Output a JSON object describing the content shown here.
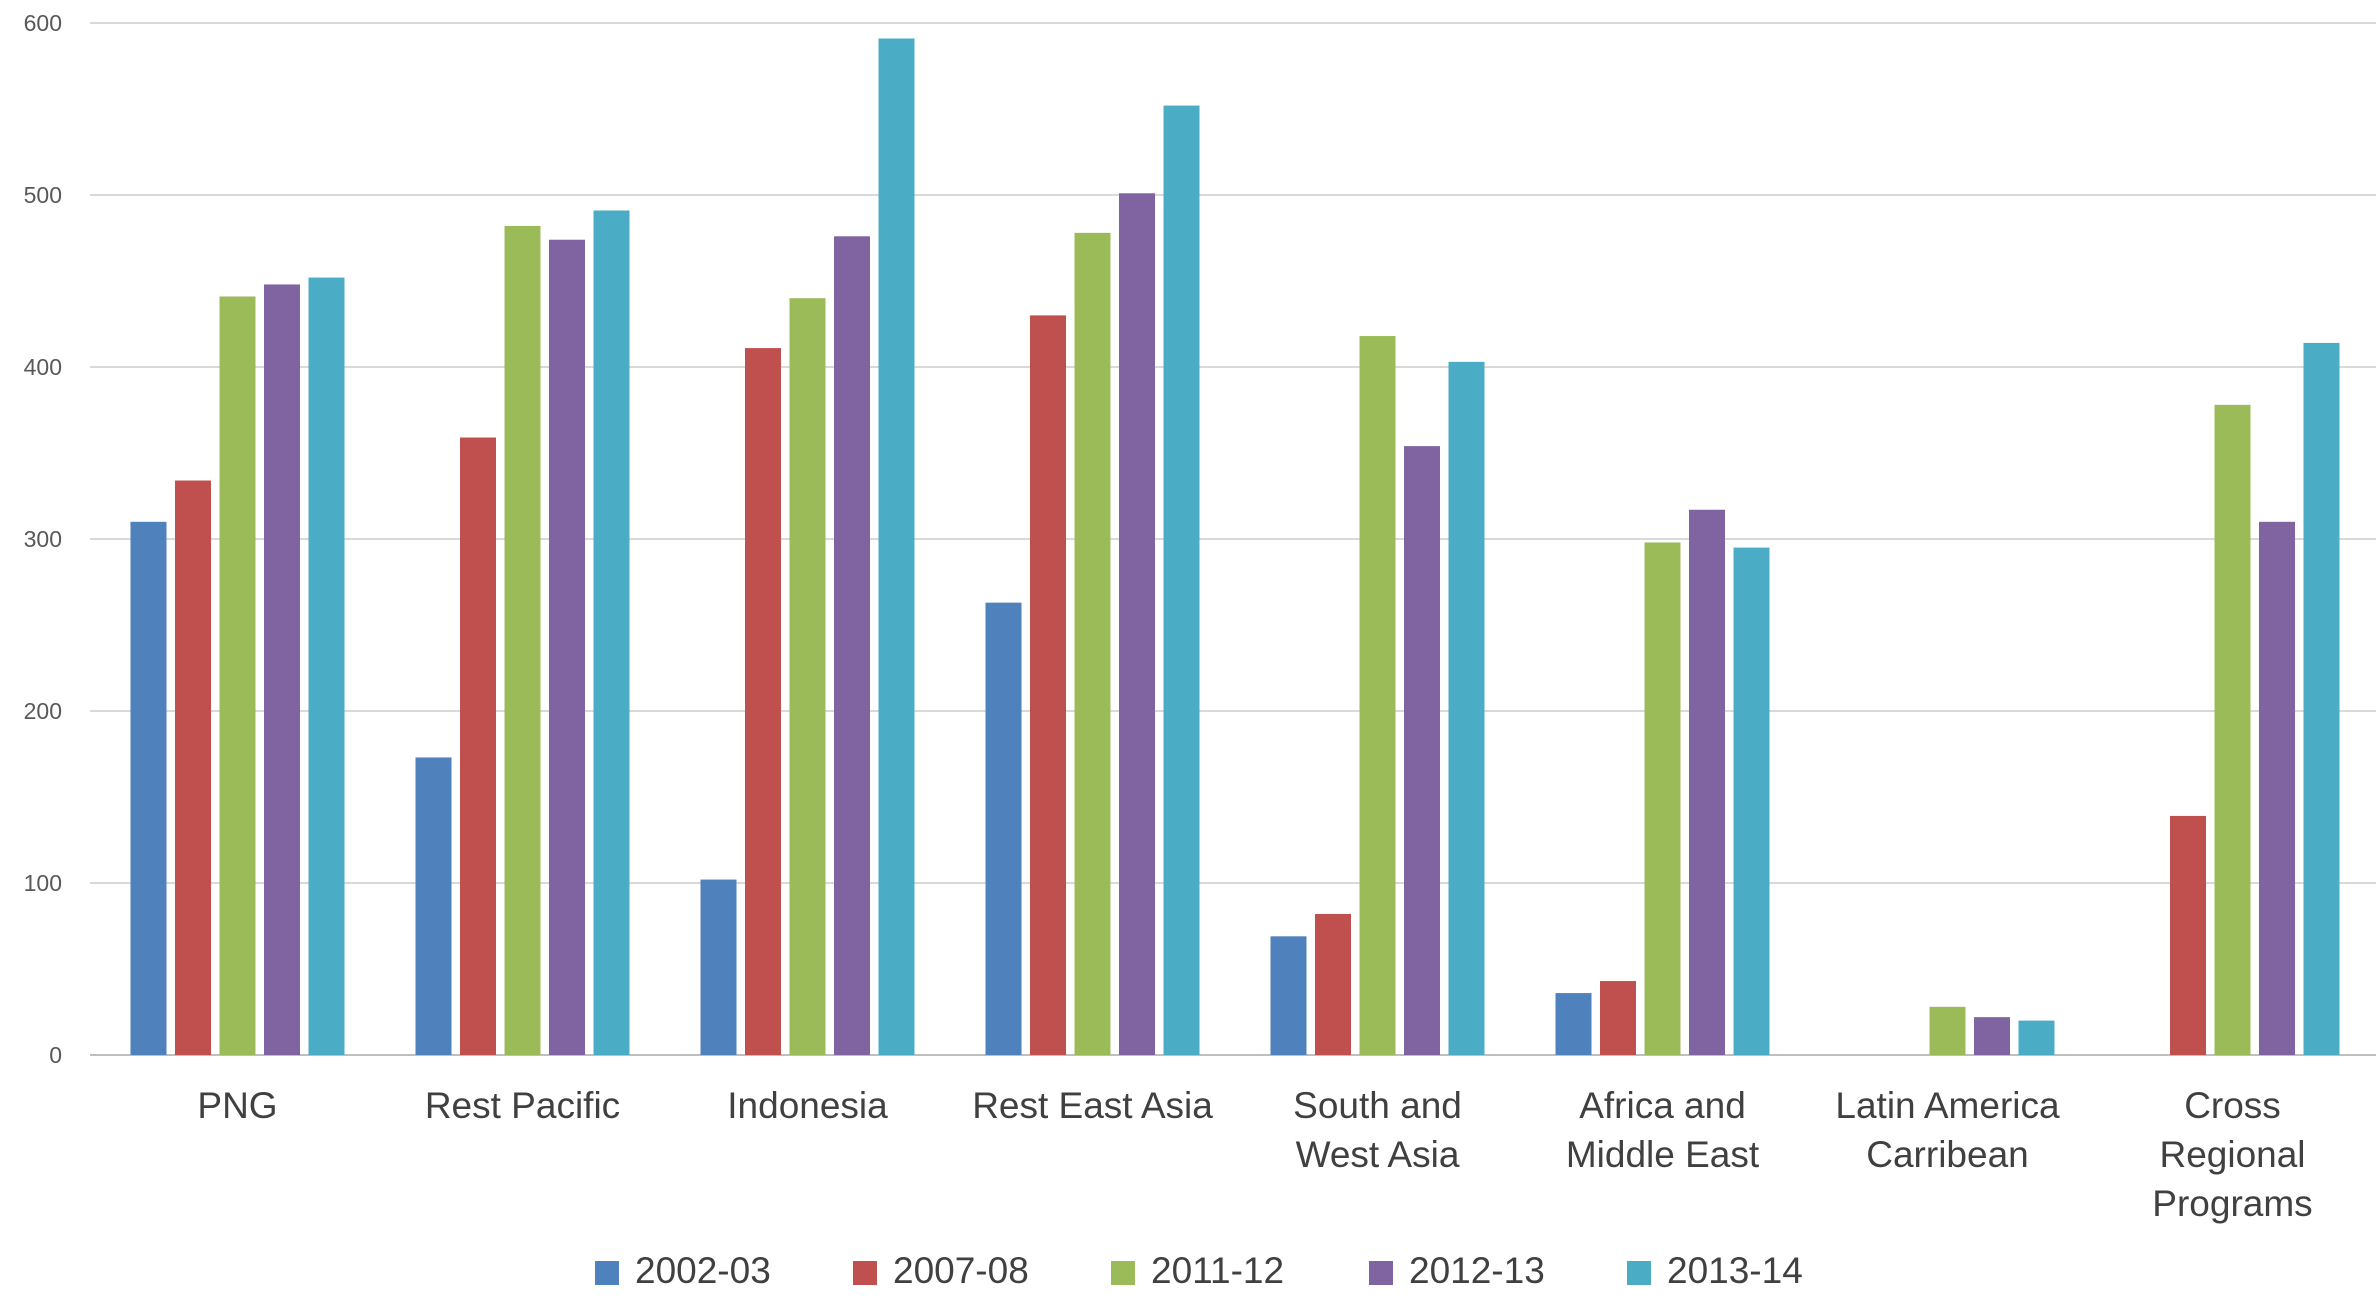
{
  "chart_data": {
    "type": "bar",
    "title": "",
    "xlabel": "",
    "ylabel": "",
    "ylim": [
      0,
      600
    ],
    "yticks": [
      "0",
      "100",
      "200",
      "300",
      "400",
      "500",
      "600"
    ],
    "grid": true,
    "legend_position": "bottom",
    "categories": [
      [
        "PNG"
      ],
      [
        "Rest Pacific"
      ],
      [
        "Indonesia"
      ],
      [
        "Rest East Asia"
      ],
      [
        "South and",
        "West Asia"
      ],
      [
        "Africa and",
        "Middle East"
      ],
      [
        "Latin America",
        "Carribean"
      ],
      [
        "Cross",
        "Regional",
        "Programs"
      ]
    ],
    "series": [
      {
        "name": "2002-03",
        "color": "#4F81BD",
        "values": [
          310,
          173,
          102,
          263,
          69,
          36,
          null,
          null
        ]
      },
      {
        "name": "2007-08",
        "color": "#C0504D",
        "values": [
          334,
          359,
          411,
          430,
          82,
          43,
          null,
          139
        ]
      },
      {
        "name": "2011-12",
        "color": "#9BBB59",
        "values": [
          441,
          482,
          440,
          478,
          418,
          298,
          28,
          378
        ]
      },
      {
        "name": "2012-13",
        "color": "#8064A2",
        "values": [
          448,
          474,
          476,
          501,
          354,
          317,
          22,
          310
        ]
      },
      {
        "name": "2013-14",
        "color": "#4BACC6",
        "values": [
          452,
          491,
          591,
          552,
          403,
          295,
          20,
          414
        ]
      }
    ]
  }
}
